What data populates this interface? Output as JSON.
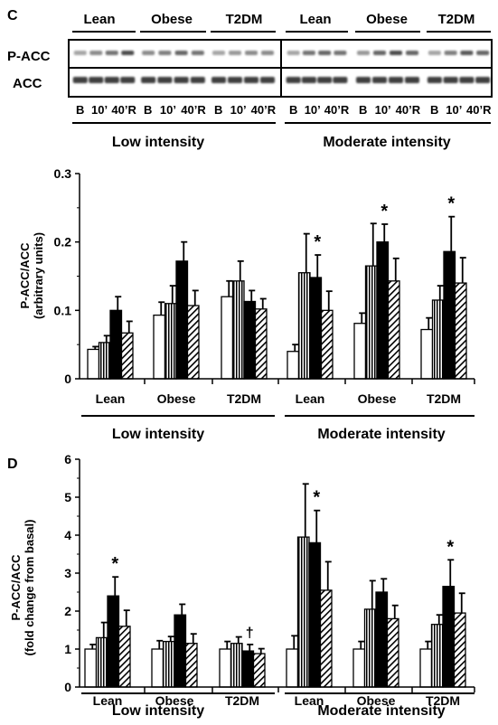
{
  "panel_c_blot": {
    "panel_letter": "C",
    "groups": [
      "Lean",
      "Obese",
      "T2DM",
      "Lean",
      "Obese",
      "T2DM"
    ],
    "rows": [
      "P-ACC",
      "ACC"
    ],
    "timepoints": [
      "B",
      "10’",
      "40’R"
    ],
    "intensities": [
      "Low intensity",
      "Moderate intensity"
    ]
  },
  "chart_data": [
    {
      "type": "bar",
      "ylabel_line1": "P-ACC/ACC",
      "ylabel_line2": "(arbitrary units)",
      "ylim": [
        0,
        0.3
      ],
      "yticks": [
        "0",
        "0.1",
        "0.2",
        "0.3"
      ],
      "ytick_values": [
        0,
        0.1,
        0.2,
        0.3
      ],
      "ytick_step": 0.1,
      "groups": [
        "Lean",
        "Obese",
        "T2DM",
        "Lean",
        "Obese",
        "T2DM"
      ],
      "intensities": [
        "Low intensity",
        "Moderate intensity"
      ],
      "series_styles": [
        "white",
        "vertical-stripes",
        "black",
        "diagonal-stripes"
      ],
      "values": [
        [
          0.043,
          0.053,
          0.1,
          0.067
        ],
        [
          0.093,
          0.11,
          0.172,
          0.107
        ],
        [
          0.12,
          0.143,
          0.113,
          0.102
        ],
        [
          0.04,
          0.155,
          0.148,
          0.1
        ],
        [
          0.081,
          0.165,
          0.2,
          0.143
        ],
        [
          0.072,
          0.115,
          0.186,
          0.14
        ]
      ],
      "errors": [
        [
          0.004,
          0.01,
          0.02,
          0.017
        ],
        [
          0.019,
          0.026,
          0.028,
          0.022
        ],
        [
          0.023,
          0.029,
          0.016,
          0.015
        ],
        [
          0.01,
          0.057,
          0.033,
          0.028
        ],
        [
          0.015,
          0.062,
          0.026,
          0.033
        ],
        [
          0.017,
          0.021,
          0.051,
          0.037
        ]
      ],
      "annotations": [
        {
          "group": 3,
          "bar": 2,
          "text": "*"
        },
        {
          "group": 4,
          "bar": 2,
          "text": "*"
        },
        {
          "group": 5,
          "bar": 2,
          "text": "*"
        }
      ]
    },
    {
      "type": "bar",
      "panel_letter": "D",
      "ylabel_line1": "P-ACC/ACC",
      "ylabel_line2": "(fold change from basal)",
      "ylim": [
        0,
        6
      ],
      "yticks": [
        "0",
        "1",
        "2",
        "3",
        "4",
        "5",
        "6"
      ],
      "ytick_values": [
        0,
        1,
        2,
        3,
        4,
        5,
        6
      ],
      "ytick_step": 1,
      "groups": [
        "Lean",
        "Obese",
        "T2DM",
        "Lean",
        "Obese",
        "T2DM"
      ],
      "intensities": [
        "Low intensity",
        "Moderate intensity"
      ],
      "series_styles": [
        "white",
        "vertical-stripes",
        "black",
        "diagonal-stripes"
      ],
      "values": [
        [
          1.0,
          1.3,
          2.4,
          1.6
        ],
        [
          1.0,
          1.2,
          1.9,
          1.15
        ],
        [
          1.0,
          1.15,
          0.95,
          0.88
        ],
        [
          1.0,
          3.95,
          3.8,
          2.55
        ],
        [
          1.0,
          2.05,
          2.5,
          1.8
        ],
        [
          1.0,
          1.65,
          2.65,
          1.95
        ]
      ],
      "errors": [
        [
          0.12,
          0.4,
          0.5,
          0.42
        ],
        [
          0.22,
          0.13,
          0.28,
          0.25
        ],
        [
          0.2,
          0.17,
          0.17,
          0.13
        ],
        [
          0.35,
          1.4,
          0.85,
          0.75
        ],
        [
          0.2,
          0.75,
          0.35,
          0.35
        ],
        [
          0.2,
          0.25,
          0.7,
          0.52
        ]
      ],
      "annotations": [
        {
          "group": 0,
          "bar": 2,
          "text": "*"
        },
        {
          "group": 2,
          "bar": 2,
          "text": "†"
        },
        {
          "group": 3,
          "bar": 2,
          "text": "*"
        },
        {
          "group": 5,
          "bar": 2,
          "text": "*"
        }
      ]
    }
  ]
}
